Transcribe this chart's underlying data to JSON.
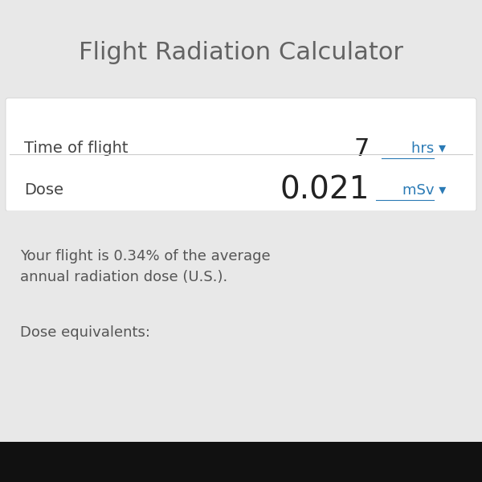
{
  "title": "Flight Radiation Calculator",
  "title_fontsize": 22,
  "title_color": "#636363",
  "background_color": "#e8e8e8",
  "white_panel_color": "#ffffff",
  "gray_panel_color": "#e8e8e8",
  "row1_label": "Time of flight",
  "row1_value": "7",
  "row1_unit": "hrs ▾",
  "row2_label": "Dose",
  "row2_value": "0.021",
  "row2_unit": "mSv ▾",
  "label_fontsize": 14,
  "value1_fontsize": 22,
  "value2_fontsize": 28,
  "unit_fontsize": 13,
  "unit_color": "#2a7ab5",
  "label_color": "#444444",
  "value_color": "#222222",
  "desc_text": "Your flight is 0.34% of the average\nannual radiation dose (U.S.).",
  "desc2_text": "Dose equivalents:",
  "desc_fontsize": 13,
  "desc_color": "#555555",
  "divider_color": "#cccccc",
  "bottom_bar_color": "#111111"
}
